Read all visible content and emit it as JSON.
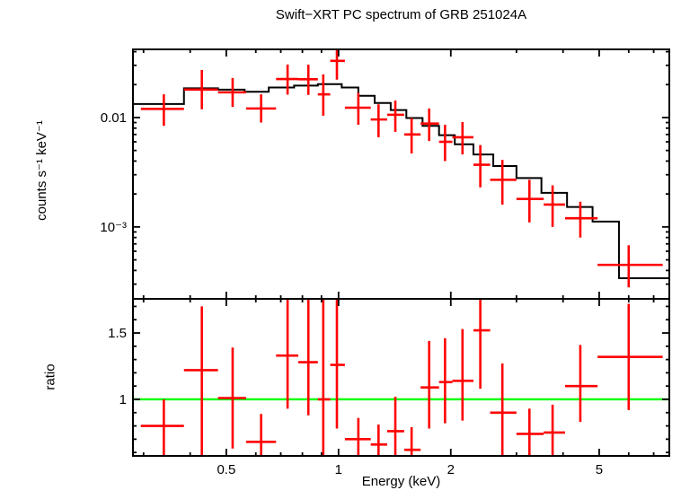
{
  "chart_data": {
    "type": "scatter",
    "title": "Swift−XRT PC spectrum of GRB 251024A",
    "xlabel": "Energy (keV)",
    "xscale": "log",
    "xlim": [
      0.281,
      7.71
    ],
    "x_ticks": {
      "major": [
        0.5,
        1,
        2,
        5
      ],
      "labels": [
        "0.5",
        "1",
        "2",
        "5"
      ],
      "minor": [
        0.3,
        0.4,
        0.6,
        0.7,
        0.8,
        0.9,
        3,
        4,
        6,
        7
      ]
    },
    "colors": {
      "data": "#ff0000",
      "model": "#000000",
      "unity_line": "#00ff00",
      "frame": "#000000"
    },
    "panels": [
      {
        "name": "spectrum",
        "ylabel": "counts s⁻¹ keV⁻¹",
        "yscale": "log",
        "ylim": [
          0.00022,
          0.042
        ],
        "y_ticks": {
          "major": [
            0.01,
            0.001
          ],
          "labels": [
            "0.01",
            "10⁻³"
          ],
          "minor": [
            0.0003,
            0.0004,
            0.0005,
            0.0006,
            0.0007,
            0.0008,
            0.0009,
            0.002,
            0.003,
            0.004,
            0.005,
            0.006,
            0.007,
            0.008,
            0.009,
            0.02,
            0.03,
            0.04
          ]
        },
        "model": {
          "edges": [
            0.281,
            0.385,
            0.475,
            0.56,
            0.65,
            0.76,
            0.88,
            1.02,
            1.13,
            1.25,
            1.38,
            1.52,
            1.68,
            1.86,
            2.05,
            2.3,
            2.6,
            3.0,
            3.5,
            4.1,
            4.8,
            5.65,
            7.71
          ],
          "values": [
            0.0133,
            0.0185,
            0.018,
            0.0172,
            0.0188,
            0.0196,
            0.0202,
            0.0188,
            0.0158,
            0.0136,
            0.0117,
            0.0099,
            0.0084,
            0.0069,
            0.0057,
            0.0046,
            0.0036,
            0.0028,
            0.00205,
            0.00152,
            0.00112,
            0.00034
          ]
        },
        "points": [
          [
            0.34,
            0.295,
            0.385,
            0.012,
            0.0084,
            0.0163
          ],
          [
            0.43,
            0.385,
            0.475,
            0.018,
            0.0119,
            0.0272
          ],
          [
            0.52,
            0.475,
            0.565,
            0.017,
            0.0125,
            0.023
          ],
          [
            0.62,
            0.565,
            0.68,
            0.0121,
            0.009,
            0.0163
          ],
          [
            0.73,
            0.68,
            0.78,
            0.0225,
            0.0162,
            0.0305
          ],
          [
            0.83,
            0.78,
            0.88,
            0.0224,
            0.0161,
            0.0304
          ],
          [
            0.91,
            0.88,
            0.95,
            0.0163,
            0.0104,
            0.0248
          ],
          [
            0.99,
            0.95,
            1.04,
            0.033,
            0.0222,
            0.047
          ],
          [
            1.13,
            1.04,
            1.22,
            0.0123,
            0.0086,
            0.0168
          ],
          [
            1.28,
            1.22,
            1.35,
            0.0096,
            0.0066,
            0.0132
          ],
          [
            1.42,
            1.35,
            1.5,
            0.0106,
            0.0074,
            0.0143
          ],
          [
            1.57,
            1.5,
            1.66,
            0.007,
            0.0047,
            0.0099
          ],
          [
            1.75,
            1.66,
            1.86,
            0.0088,
            0.0061,
            0.0121
          ],
          [
            1.93,
            1.86,
            2.02,
            0.006,
            0.004,
            0.0086
          ],
          [
            2.15,
            2.02,
            2.3,
            0.0066,
            0.0046,
            0.0091
          ],
          [
            2.4,
            2.3,
            2.55,
            0.0037,
            0.0023,
            0.0056
          ],
          [
            2.75,
            2.55,
            3.0,
            0.0027,
            0.0016,
            0.0041
          ],
          [
            3.25,
            3.0,
            3.55,
            0.0018,
            0.0011,
            0.0027
          ],
          [
            3.75,
            3.55,
            4.05,
            0.0016,
            0.001,
            0.0024
          ],
          [
            4.45,
            4.05,
            4.95,
            0.0012,
            0.0008,
            0.0017
          ],
          [
            6.0,
            4.95,
            7.4,
            0.00045,
            0.00028,
            0.00068
          ]
        ]
      },
      {
        "name": "ratio",
        "ylabel": "ratio",
        "yscale": "linear",
        "ylim": [
          0.574,
          1.757
        ],
        "y_ticks": {
          "major": [
            1,
            1.5
          ],
          "labels": [
            "1",
            "1.5"
          ],
          "minor": [
            0.6,
            0.7,
            0.8,
            0.9,
            1.1,
            1.2,
            1.3,
            1.4,
            1.6,
            1.7
          ]
        },
        "unity_line_y": 1,
        "points": [
          [
            0.34,
            0.295,
            0.385,
            0.8,
            0.57,
            1.0
          ],
          [
            0.43,
            0.385,
            0.475,
            1.22,
            0.55,
            1.7
          ],
          [
            0.52,
            0.475,
            0.565,
            1.01,
            0.63,
            1.39
          ],
          [
            0.62,
            0.565,
            0.68,
            0.68,
            0.48,
            0.89
          ],
          [
            0.73,
            0.68,
            0.78,
            1.33,
            0.93,
            1.8
          ],
          [
            0.83,
            0.78,
            0.88,
            1.28,
            0.88,
            1.8
          ],
          [
            0.91,
            0.88,
            0.95,
            1.0,
            0.5,
            1.8
          ],
          [
            0.99,
            0.95,
            1.04,
            1.26,
            0.78,
            1.8
          ],
          [
            1.13,
            1.04,
            1.22,
            0.7,
            0.55,
            0.86
          ],
          [
            1.28,
            1.22,
            1.35,
            0.66,
            0.5,
            0.81
          ],
          [
            1.42,
            1.35,
            1.5,
            0.76,
            0.55,
            1.02
          ],
          [
            1.57,
            1.5,
            1.66,
            0.62,
            0.5,
            0.79
          ],
          [
            1.75,
            1.66,
            1.86,
            1.09,
            0.78,
            1.44
          ],
          [
            1.93,
            1.86,
            2.02,
            1.13,
            0.82,
            1.46
          ],
          [
            2.15,
            2.02,
            2.3,
            1.14,
            0.84,
            1.53
          ],
          [
            2.4,
            2.3,
            2.55,
            1.52,
            1.08,
            1.8
          ],
          [
            2.75,
            2.55,
            3.0,
            0.9,
            0.52,
            1.27
          ],
          [
            3.25,
            3.0,
            3.55,
            0.74,
            0.55,
            0.93
          ],
          [
            3.75,
            3.55,
            4.05,
            0.75,
            0.55,
            0.96
          ],
          [
            4.45,
            4.05,
            4.95,
            1.1,
            0.83,
            1.41
          ],
          [
            6.0,
            4.95,
            7.4,
            1.32,
            0.92,
            1.72
          ]
        ]
      }
    ]
  }
}
